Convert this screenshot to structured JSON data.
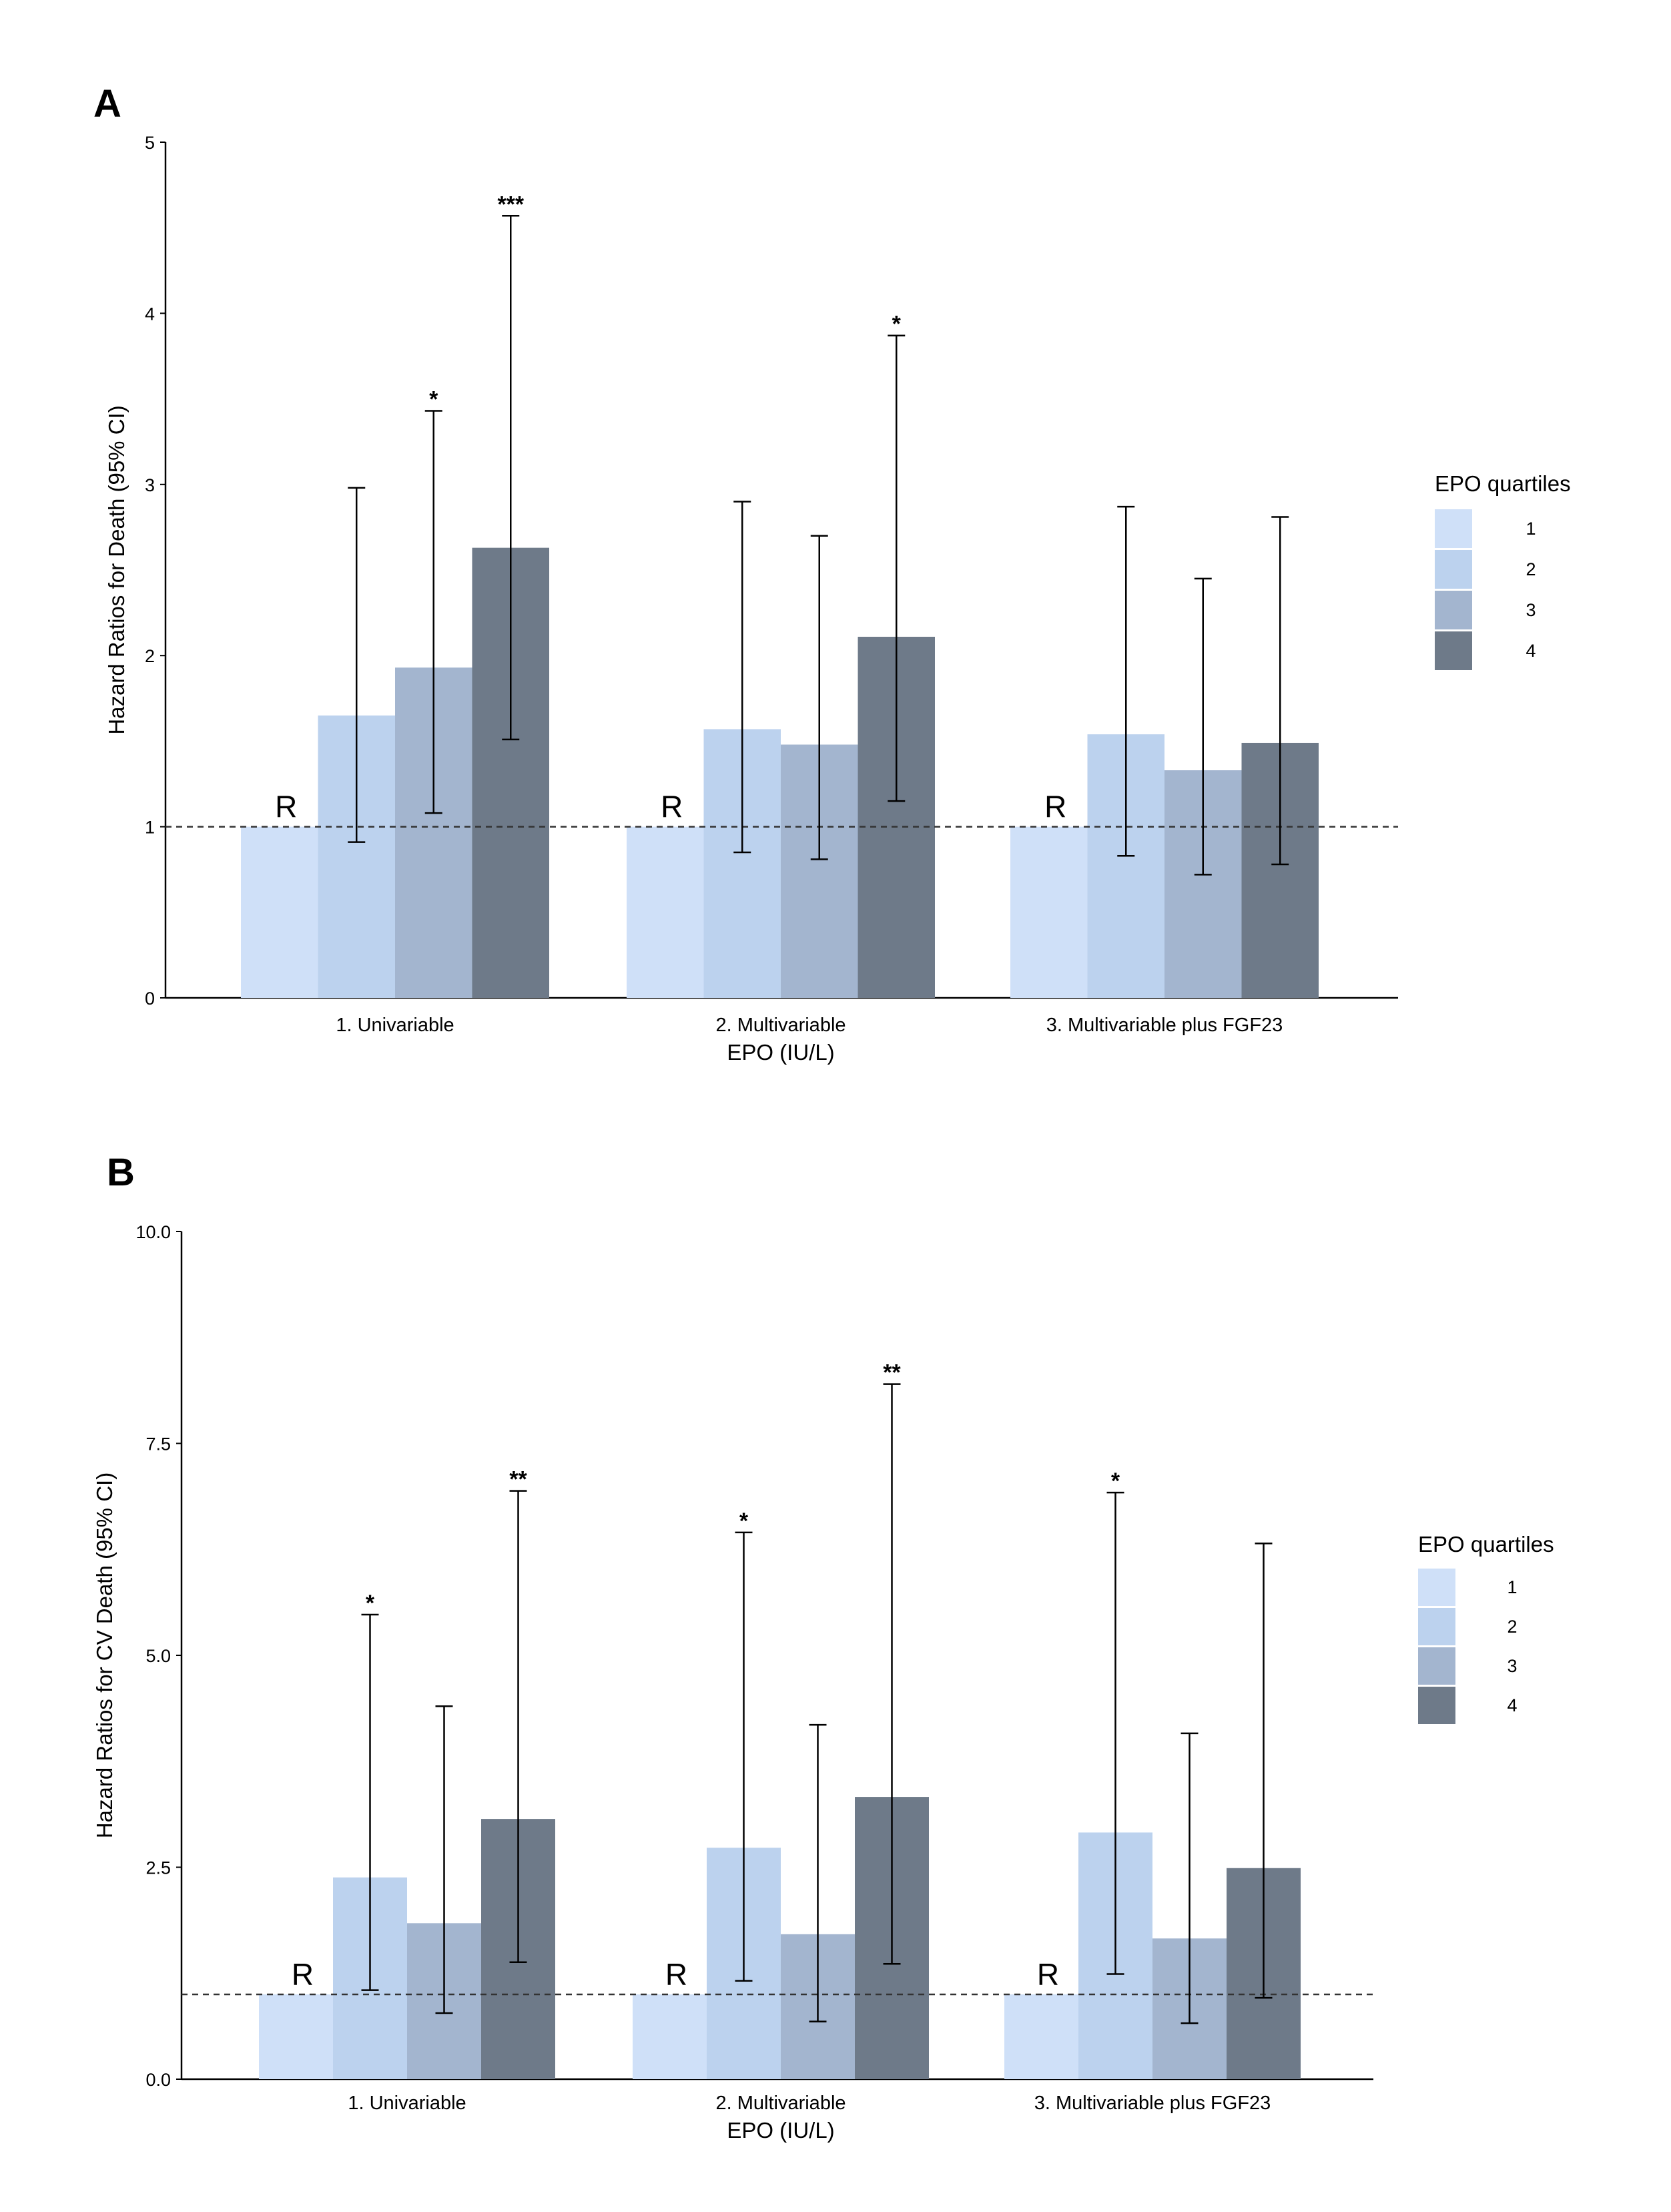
{
  "chart_data": [
    {
      "panel": "A",
      "type": "bar",
      "ylabel": "Hazard Ratios for Death (95% CI)",
      "xlabel": "EPO (IU/L)",
      "ylim": [
        0,
        5
      ],
      "yticks": [
        "0",
        "1",
        "2",
        "3",
        "4",
        "5"
      ],
      "reference_line": 1,
      "reference_marker": "R",
      "categories": [
        "1. Univariable",
        "2. Multivariable",
        "3. Multivariable plus FGF23"
      ],
      "legend_title": "EPO quartiles",
      "series": [
        {
          "name": "1",
          "color": "#cfe0f8",
          "values": [
            1.0,
            1.0,
            1.0
          ],
          "ci_low": [
            null,
            null,
            null
          ],
          "ci_high": [
            null,
            null,
            null
          ],
          "sig": [
            "",
            "",
            ""
          ]
        },
        {
          "name": "2",
          "color": "#bcd2ee",
          "values": [
            1.65,
            1.57,
            1.54
          ],
          "ci_low": [
            0.91,
            0.85,
            0.83
          ],
          "ci_high": [
            2.98,
            2.9,
            2.87
          ],
          "sig": [
            "",
            "",
            ""
          ]
        },
        {
          "name": "3",
          "color": "#a3b5cf",
          "values": [
            1.93,
            1.48,
            1.33
          ],
          "ci_low": [
            1.08,
            0.81,
            0.72
          ],
          "ci_high": [
            3.43,
            2.7,
            2.45
          ],
          "sig": [
            "*",
            "",
            ""
          ]
        },
        {
          "name": "4",
          "color": "#6e7a89",
          "values": [
            2.63,
            2.11,
            1.49
          ],
          "ci_low": [
            1.51,
            1.15,
            0.78
          ],
          "ci_high": [
            4.57,
            3.87,
            2.81
          ],
          "sig": [
            "***",
            "*",
            ""
          ]
        }
      ]
    },
    {
      "panel": "B",
      "type": "bar",
      "ylabel": "Hazard Ratios for CV Death (95% CI)",
      "xlabel": "EPO (IU/L)",
      "ylim": [
        0,
        10
      ],
      "yticks": [
        "0.0",
        "2.5",
        "5.0",
        "7.5",
        "10.0"
      ],
      "reference_line": 1,
      "reference_marker": "R",
      "categories": [
        "1. Univariable",
        "2. Multivariable",
        "3. Multivariable plus FGF23"
      ],
      "legend_title": "EPO quartiles",
      "series": [
        {
          "name": "1",
          "color": "#cfe0f8",
          "values": [
            1.0,
            1.0,
            1.0
          ],
          "ci_low": [
            null,
            null,
            null
          ],
          "ci_high": [
            null,
            null,
            null
          ],
          "sig": [
            "",
            "",
            ""
          ]
        },
        {
          "name": "2",
          "color": "#bcd2ee",
          "values": [
            2.38,
            2.73,
            2.91
          ],
          "ci_low": [
            1.05,
            1.16,
            1.24
          ],
          "ci_high": [
            5.48,
            6.45,
            6.92
          ],
          "sig": [
            "*",
            "*",
            "*"
          ]
        },
        {
          "name": "3",
          "color": "#a3b5cf",
          "values": [
            1.84,
            1.71,
            1.66
          ],
          "ci_low": [
            0.78,
            0.68,
            0.66
          ],
          "ci_high": [
            4.4,
            4.18,
            4.08
          ],
          "sig": [
            "",
            "",
            ""
          ]
        },
        {
          "name": "4",
          "color": "#6e7a89",
          "values": [
            3.07,
            3.33,
            2.49
          ],
          "ci_low": [
            1.38,
            1.36,
            0.96
          ],
          "ci_high": [
            6.94,
            8.2,
            6.32
          ],
          "sig": [
            "**",
            "**",
            ""
          ]
        }
      ]
    }
  ]
}
